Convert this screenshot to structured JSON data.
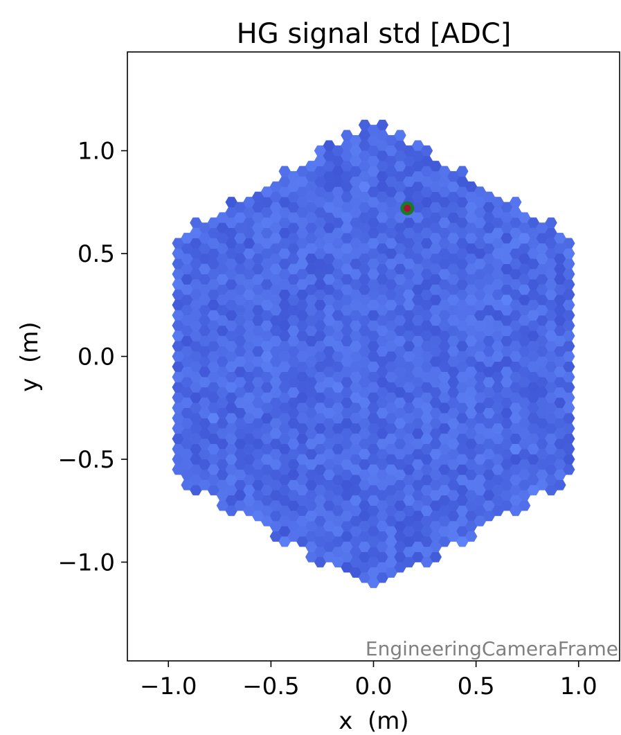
{
  "chart_data": {
    "type": "heatmap",
    "title": "HG signal std [ADC]",
    "xlabel": "x  (m)",
    "ylabel": "y  (m)",
    "xlim": [
      -1.2,
      1.2
    ],
    "ylim": [
      -1.48,
      1.48
    ],
    "xticks": [
      -1.0,
      -0.5,
      0.0,
      0.5,
      1.0
    ],
    "xtick_labels": [
      "−1.0",
      "−0.5",
      "0.0",
      "0.5",
      "1.0"
    ],
    "yticks": [
      1.0,
      0.5,
      0.0,
      -0.5,
      -1.0
    ],
    "ytick_labels": [
      "1.0",
      "0.5",
      "0.0",
      "−0.5",
      "−1.0"
    ],
    "frame_label": "EngineeringCameraFrame",
    "grid": false,
    "camera_outline": {
      "shape": "hexagon",
      "vertex_radius_m": 1.15
    },
    "pixel": {
      "shape": "hexagon",
      "spacing_m": 0.05,
      "value_color_range": [
        "#3f57d6",
        "#5b7df5"
      ]
    },
    "highlighted_pixel": {
      "x": 0.165,
      "y": 0.72,
      "ring_color": "#1a7a2a",
      "center_color": "#b01030"
    },
    "colors": {
      "pixel_low": "#3f57d6",
      "pixel_mid": "#4d69e8",
      "pixel_high": "#5e82f7",
      "frame_label": "#808080",
      "axes": "#000000"
    }
  }
}
